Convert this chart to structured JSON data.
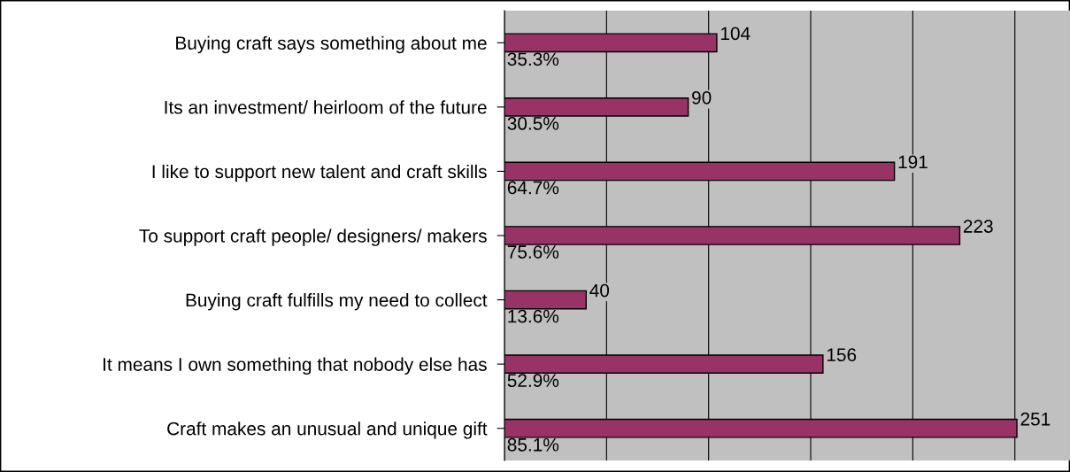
{
  "chart_data": {
    "type": "bar",
    "orientation": "horizontal",
    "categories": [
      "Buying craft says something about me",
      "Its an investment/ heirloom of the future",
      "I like to support new talent and craft skills",
      "To support craft people/ designers/ makers",
      "Buying craft fulfills my need to collect",
      "It means I own something that nobody else has",
      "Craft makes an unusual and unique gift"
    ],
    "values": [
      104,
      90,
      191,
      223,
      40,
      156,
      251
    ],
    "color": "#993366",
    "data_labels": true,
    "xlim": [
      0,
      277
    ],
    "xticks": [
      {
        "value": 0,
        "label": null
      },
      {
        "value": 50,
        "label": null
      },
      {
        "value": 100,
        "label": null
      },
      {
        "value": 150,
        "label": null
      },
      {
        "value": 200,
        "label": null
      },
      {
        "value": 250,
        "label": null
      }
    ],
    "grid": "x",
    "annotations": [
      "35.3%",
      "30.5%",
      "64.7%",
      "75.6%",
      "13.6%",
      "52.9%",
      "85.1%"
    ]
  }
}
